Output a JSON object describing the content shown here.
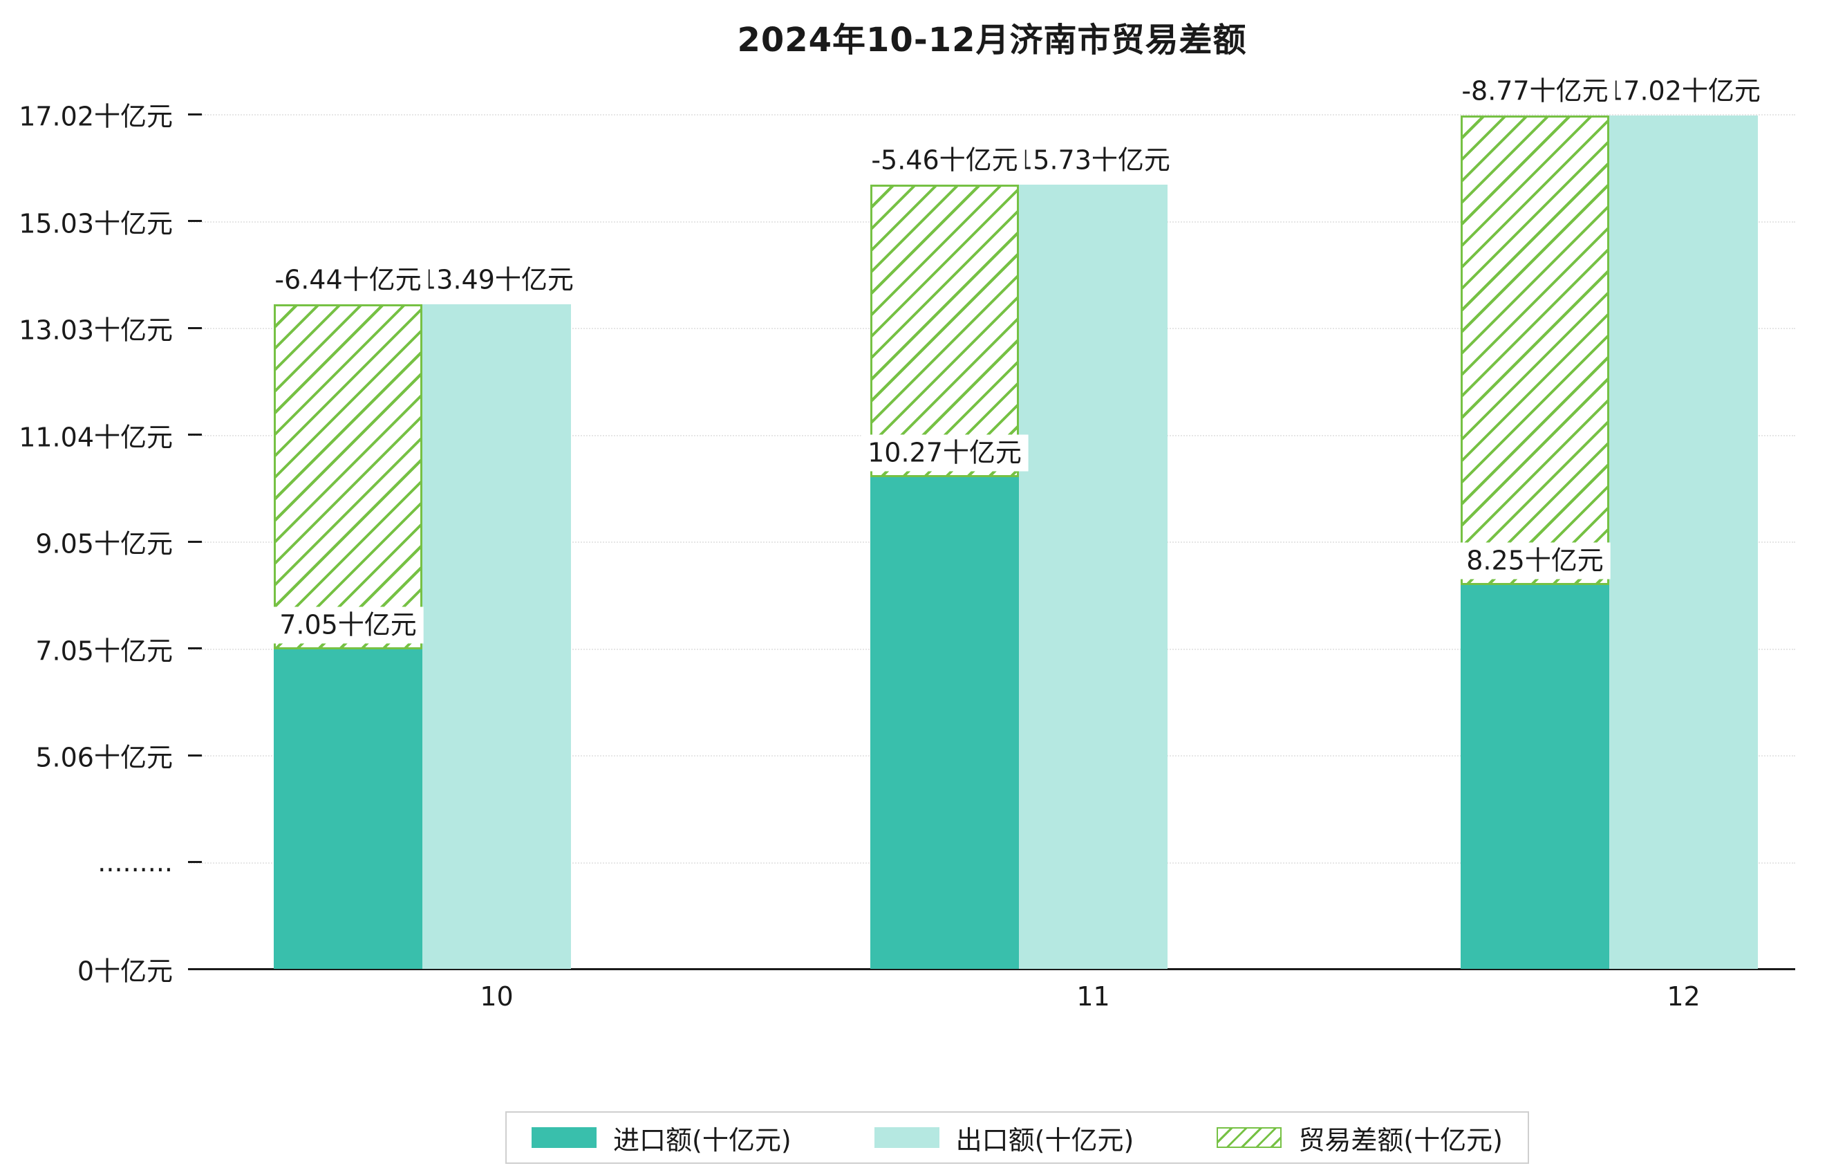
{
  "chart_data": {
    "type": "bar",
    "title": "2024年10-12月济南市贸易差额",
    "categories": [
      "10",
      "11",
      "12"
    ],
    "unit": "十亿元",
    "series": [
      {
        "name": "进口额(十亿元)",
        "role": "import",
        "values": [
          7.05,
          10.27,
          8.25
        ],
        "labels": [
          "7.05十亿元",
          "10.27十亿元",
          "8.25十亿元"
        ],
        "color": "#39bfac",
        "style": "solid"
      },
      {
        "name": "出口额(十亿元)",
        "role": "export",
        "values": [
          13.49,
          15.73,
          17.02
        ],
        "labels": [
          "13.49十亿元",
          "15.73十亿元",
          "17.02十亿元"
        ],
        "color": "#b5e8e1",
        "style": "solid"
      },
      {
        "name": "贸易差额(十亿元)",
        "role": "balance",
        "values": [
          -6.44,
          -5.46,
          -8.77
        ],
        "labels": [
          "-6.44十亿元",
          "-5.46十亿元",
          "-8.77十亿元"
        ],
        "color": "#76c144",
        "style": "hatched",
        "drawn_as": "hatched span from import top to export top over the import bar"
      }
    ],
    "y_axis": {
      "tick_labels": [
        "0十亿元",
        ".........",
        "5.06十亿元",
        "7.05十亿元",
        "9.05十亿元",
        "11.04十亿元",
        "13.03十亿元",
        "15.03十亿元",
        "17.02十亿元"
      ],
      "tick_values": [
        0,
        null,
        5.06,
        7.05,
        9.05,
        11.04,
        13.03,
        15.03,
        17.02
      ],
      "axis_break": true,
      "break_label": "........."
    },
    "x_axis": {
      "tick_labels": [
        "10",
        "11",
        "12"
      ]
    },
    "grid": true,
    "legend_position": "bottom"
  },
  "colors": {
    "import": "#39bfac",
    "export": "#b5e8e1",
    "balance": "#76c144",
    "background": "#ffffff",
    "grid": "#e6e6e6",
    "text": "#1a1a1a",
    "legend_border": "#cfcfcf"
  }
}
